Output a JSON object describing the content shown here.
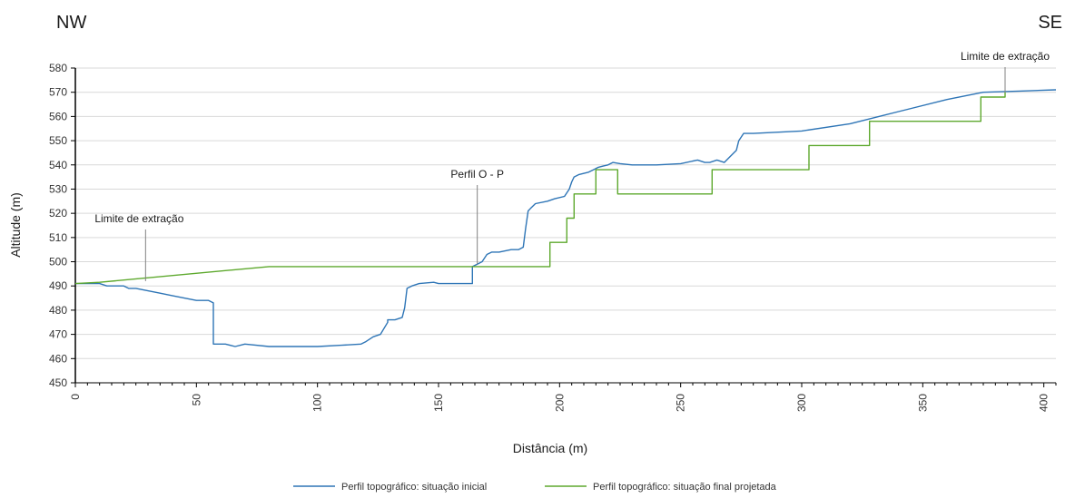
{
  "corner_left": "NW",
  "corner_right": "SE",
  "chart_data": {
    "type": "line",
    "title": "",
    "xlabel": "Distância (m)",
    "ylabel": "Altitude (m)",
    "xlim": [
      0,
      405
    ],
    "ylim": [
      450,
      580
    ],
    "xticks": [
      0,
      50,
      100,
      150,
      200,
      250,
      300,
      350,
      400
    ],
    "yticks": [
      450,
      460,
      470,
      480,
      490,
      500,
      510,
      520,
      530,
      540,
      550,
      560,
      570,
      580
    ],
    "grid": true,
    "legend_position": "bottom-center",
    "colors": {
      "initial": "#2e75b6",
      "final": "#5ea92e",
      "grid": "#d9d9d9",
      "axis": "#000000",
      "annotation": "#808080"
    },
    "series": [
      {
        "name": "Perfil topográfico: situação inicial",
        "x": [
          0,
          10,
          13,
          20,
          22,
          25,
          30,
          35,
          40,
          45,
          50,
          55,
          57,
          57,
          62,
          66,
          70,
          80,
          100,
          110,
          118,
          120,
          123,
          126,
          129,
          129,
          132,
          135,
          136,
          137,
          139,
          142,
          148,
          150,
          160,
          164,
          164,
          166,
          168,
          170,
          172,
          175,
          180,
          183,
          185,
          186,
          187,
          188,
          190,
          195,
          198,
          202,
          204,
          205,
          206,
          208,
          212,
          214,
          216,
          218,
          220,
          222,
          225,
          230,
          240,
          250,
          257,
          260,
          262,
          265,
          268,
          270,
          273,
          274,
          276,
          280,
          300,
          320,
          340,
          360,
          375,
          390,
          405
        ],
        "y": [
          491,
          491,
          490,
          490,
          489,
          489,
          488,
          487,
          486,
          485,
          484,
          484,
          483,
          466,
          466,
          465,
          466,
          465,
          465,
          465.5,
          466,
          467,
          469,
          470,
          475,
          476,
          476,
          477,
          481,
          489,
          490,
          491,
          491.5,
          491,
          491,
          491,
          498,
          499,
          500,
          503,
          504,
          504,
          505,
          505,
          506,
          514,
          521,
          522,
          524,
          525,
          526,
          527,
          530,
          533,
          535,
          536,
          537,
          538,
          539,
          539.5,
          540,
          541,
          540.5,
          540,
          540,
          540.5,
          542,
          541,
          541,
          542,
          541,
          543,
          546,
          550,
          553,
          553,
          554,
          557,
          562,
          567,
          570,
          570.5,
          571
        ]
      },
      {
        "name": "Perfil topográfico: situação final projetada",
        "x": [
          0,
          10,
          80,
          196,
          196,
          203,
          203,
          206,
          206,
          215,
          215,
          224,
          224,
          263,
          263,
          303,
          303,
          328,
          328,
          374,
          374,
          384,
          384
        ],
        "y": [
          491,
          491.5,
          498,
          498,
          508,
          508,
          518,
          518,
          528,
          528,
          538,
          538,
          528,
          528,
          538,
          538,
          548,
          548,
          558,
          558,
          568,
          568,
          570
        ]
      }
    ],
    "annotations": [
      {
        "label": "Limite de extração",
        "x": 29,
        "y": 492
      },
      {
        "label": "Perfil O - P",
        "x": 166,
        "y": 499
      },
      {
        "label": "Limite de extração",
        "x": 384,
        "y": 570
      }
    ]
  }
}
